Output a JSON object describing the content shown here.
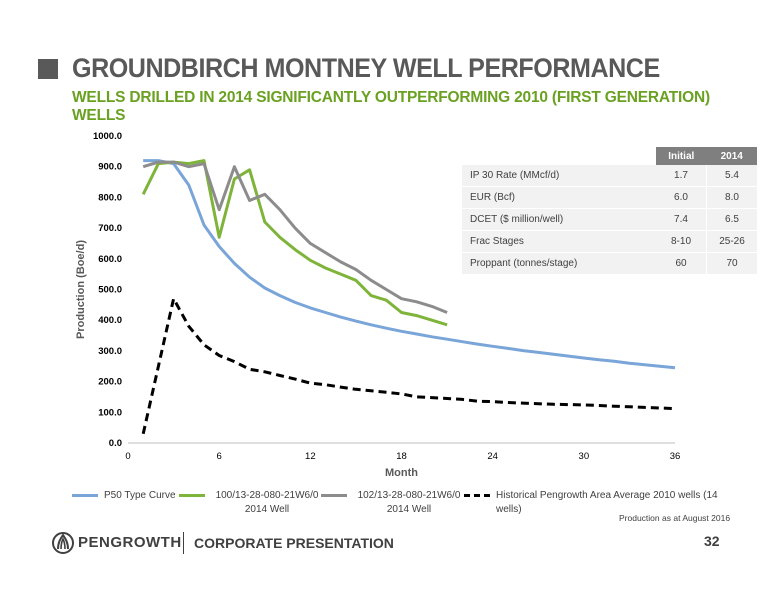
{
  "header": {
    "title": "GROUNDBIRCH MONTNEY WELL PERFORMANCE",
    "subtitle": "WELLS DRILLED IN 2014 SIGNIFICANTLY OUTPERFORMING 2010 (FIRST GENERATION) WELLS"
  },
  "chart_data": {
    "type": "line",
    "xlabel": "Month",
    "ylabel": "Production (Boe/d)",
    "xlim": [
      0,
      36
    ],
    "ylim": [
      0,
      1000
    ],
    "x_ticks": [
      0,
      6,
      12,
      18,
      24,
      30,
      36
    ],
    "y_ticks": [
      "0.0",
      "100.0",
      "200.0",
      "300.0",
      "400.0",
      "500.0",
      "600.0",
      "700.0",
      "800.0",
      "900.0",
      "1000.0"
    ],
    "grid": false,
    "legend": "bottom",
    "series": [
      {
        "name": "P50 Type Curve",
        "color": "#7aa5d8",
        "style": "solid",
        "x": [
          1,
          2,
          3,
          4,
          5,
          6,
          7,
          8,
          9,
          10,
          11,
          12,
          13,
          14,
          15,
          16,
          17,
          18,
          19,
          20,
          21,
          22,
          23,
          24,
          25,
          26,
          27,
          28,
          29,
          30,
          31,
          32,
          33,
          34,
          35,
          36
        ],
        "y": [
          920,
          920,
          910,
          840,
          710,
          640,
          585,
          540,
          505,
          480,
          458,
          440,
          425,
          410,
          397,
          385,
          374,
          364,
          355,
          346,
          338,
          330,
          322,
          315,
          308,
          301,
          295,
          289,
          283,
          277,
          271,
          266,
          260,
          255,
          250,
          245
        ]
      },
      {
        "name": "100/13-28-080-21W6/0 2014 Well",
        "color": "#7fb43a",
        "style": "solid",
        "x": [
          1,
          2,
          3,
          4,
          5,
          6,
          7,
          8,
          9,
          10,
          11,
          12,
          13,
          14,
          15,
          16,
          17,
          18,
          19,
          20,
          21
        ],
        "y": [
          810,
          910,
          915,
          910,
          920,
          670,
          860,
          890,
          720,
          670,
          630,
          595,
          570,
          550,
          530,
          480,
          465,
          425,
          415,
          400,
          385
        ]
      },
      {
        "name": "102/13-28-080-21W6/0 2014 Well",
        "color": "#8c8c8c",
        "style": "solid",
        "x": [
          1,
          2,
          3,
          4,
          5,
          6,
          7,
          8,
          9,
          10,
          11,
          12,
          13,
          14,
          15,
          16,
          17,
          18,
          19,
          20,
          21
        ],
        "y": [
          900,
          915,
          915,
          900,
          910,
          760,
          900,
          790,
          810,
          760,
          700,
          650,
          620,
          590,
          565,
          530,
          500,
          470,
          460,
          445,
          425
        ]
      },
      {
        "name": "Historical Pengrowth Area Average 2010 wells (14 wells)",
        "color": "#000000",
        "style": "dashed",
        "x": [
          1,
          2,
          3,
          4,
          5,
          6,
          7,
          8,
          9,
          10,
          11,
          12,
          13,
          14,
          15,
          16,
          17,
          18,
          19,
          20,
          21,
          22,
          23,
          24,
          25,
          26,
          27,
          28,
          29,
          30,
          31,
          32,
          33,
          34,
          35,
          36
        ],
        "y": [
          30,
          250,
          470,
          380,
          320,
          285,
          265,
          240,
          232,
          220,
          208,
          195,
          190,
          182,
          175,
          170,
          165,
          160,
          150,
          148,
          145,
          142,
          136,
          135,
          132,
          130,
          128,
          126,
          125,
          124,
          122,
          120,
          118,
          116,
          114,
          112
        ]
      }
    ]
  },
  "table": {
    "headers": [
      "Initial",
      "2014"
    ],
    "rows": [
      {
        "label": "IP 30 Rate (MMcf/d)",
        "initial": "1.7",
        "y2014": "5.4"
      },
      {
        "label": "EUR (Bcf)",
        "initial": "6.0",
        "y2014": "8.0"
      },
      {
        "label": "DCET ($ million/well)",
        "initial": "7.4",
        "y2014": "6.5"
      },
      {
        "label": "Frac Stages",
        "initial": "8-10",
        "y2014": "25-26"
      },
      {
        "label": "Proppant (tonnes/stage)",
        "initial": "60",
        "y2014": "70"
      }
    ]
  },
  "legend": {
    "p50": "P50 Type Curve",
    "well100": "100/13-28-080-21W6/0 2014 Well",
    "well102": "102/13-28-080-21W6/0 2014 Well",
    "historical": "Historical Pengrowth Area Average 2010 wells (14 wells)"
  },
  "footnote": "Production as at August  2016",
  "footer": {
    "brand": "PENGROWTH",
    "title": "CORPORATE PRESENTATION",
    "page_number": "32"
  },
  "colors": {
    "title_gray": "#595959",
    "subtitle_green": "#6aa121",
    "p50_blue": "#7aa5d8",
    "well100_green": "#7fb43a",
    "well102_gray": "#8c8c8c",
    "historical_black": "#000000"
  }
}
